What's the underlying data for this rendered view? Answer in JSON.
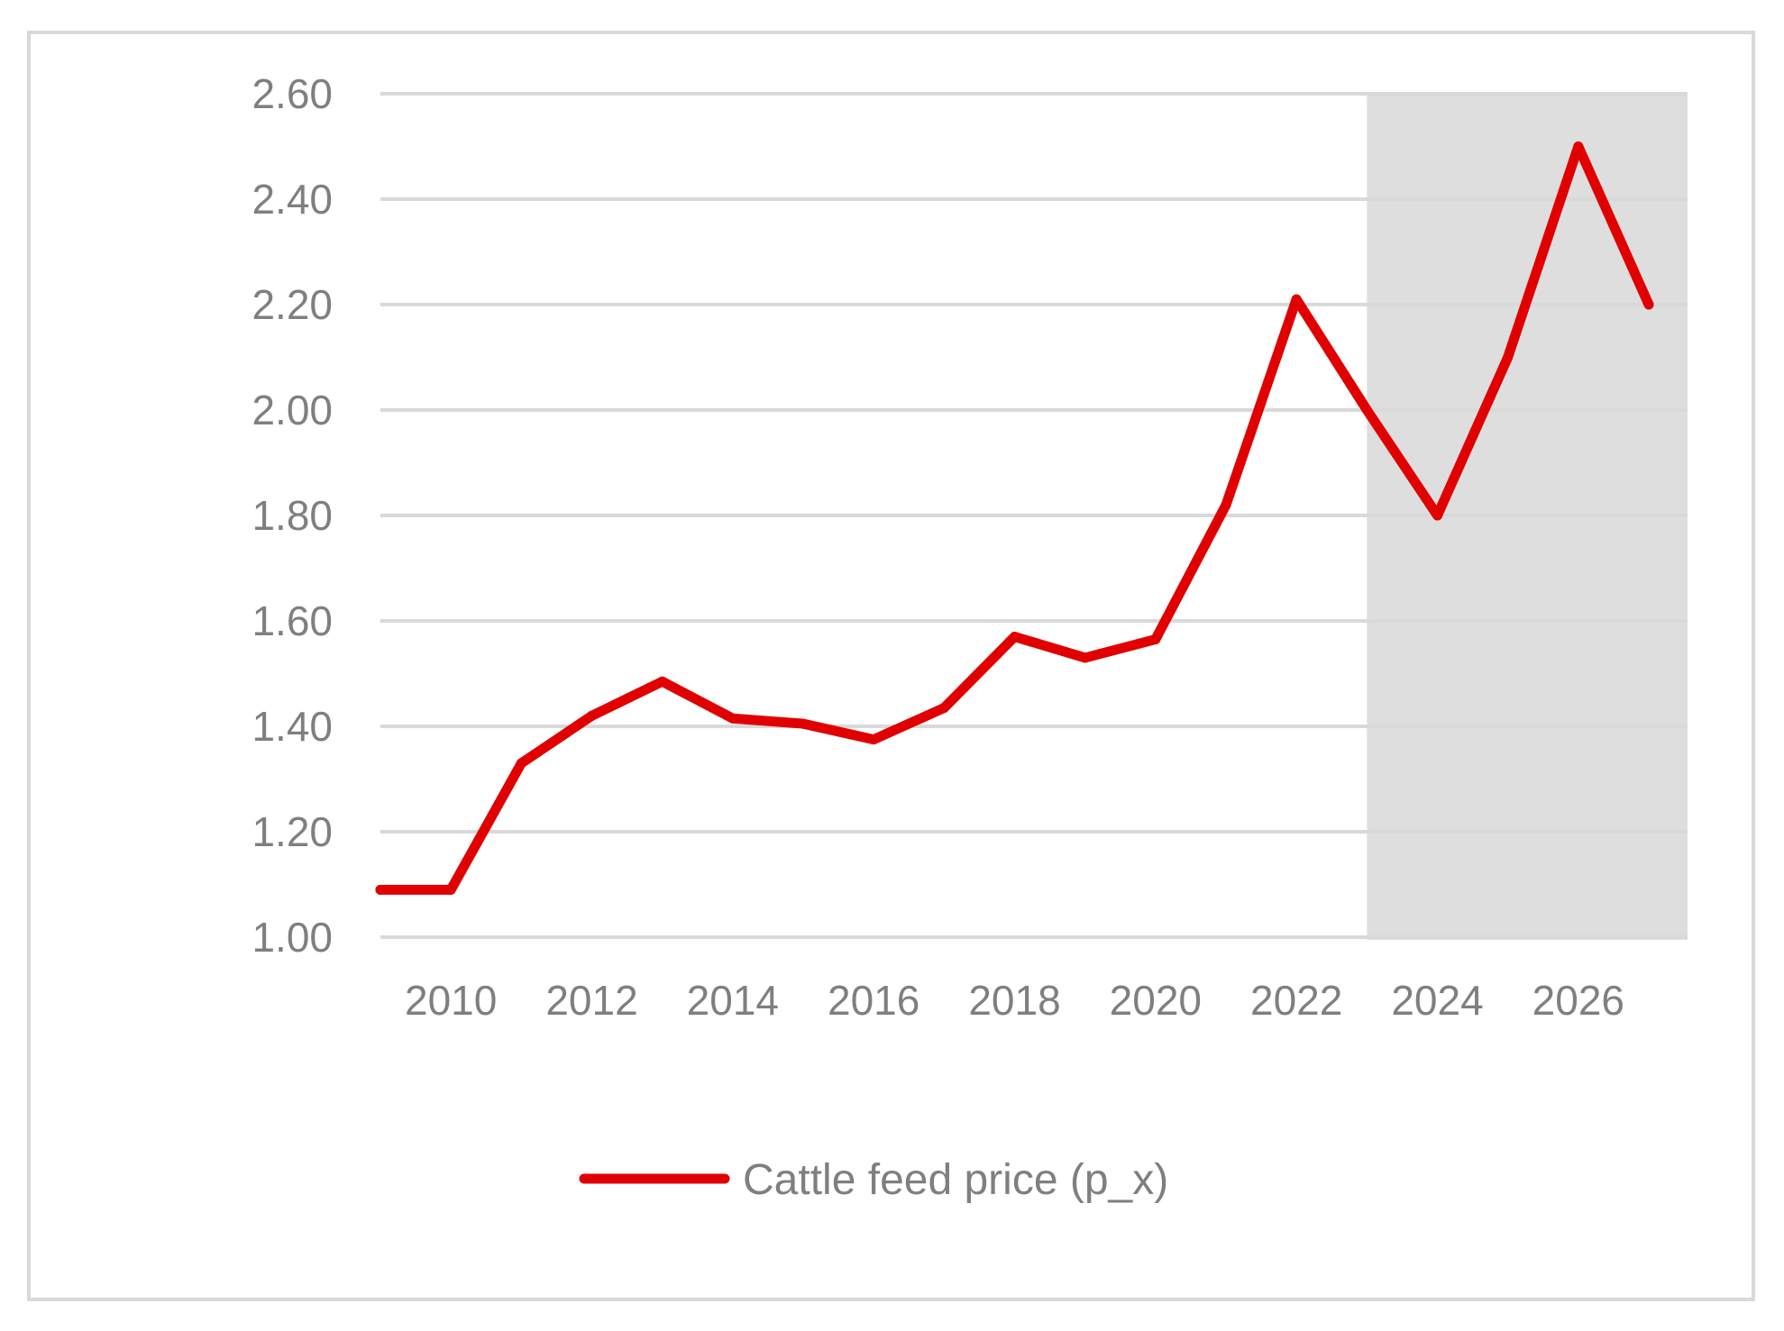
{
  "chart_data": {
    "type": "line",
    "title": "",
    "xlabel": "",
    "ylabel": "",
    "x": [
      2009,
      2010,
      2011,
      2012,
      2013,
      2014,
      2015,
      2016,
      2017,
      2018,
      2019,
      2020,
      2021,
      2022,
      2023,
      2024,
      2025,
      2026,
      2027
    ],
    "series": [
      {
        "name": "Cattle feed price (p_x)",
        "color": "#e00000",
        "values": [
          1.09,
          1.09,
          1.33,
          1.42,
          1.485,
          1.415,
          1.405,
          1.375,
          1.435,
          1.57,
          1.53,
          1.565,
          1.82,
          2.21,
          2.0,
          1.8,
          2.1,
          2.5,
          2.2
        ]
      }
    ],
    "ylim": [
      1.0,
      2.6
    ],
    "xlim": [
      2009,
      2027
    ],
    "y_ticks": [
      "1.00",
      "1.20",
      "1.40",
      "1.60",
      "1.80",
      "2.00",
      "2.20",
      "2.40",
      "2.60"
    ],
    "y_tick_values": [
      1.0,
      1.2,
      1.4,
      1.6,
      1.8,
      2.0,
      2.2,
      2.4,
      2.6
    ],
    "x_ticks": [
      "2010",
      "2012",
      "2014",
      "2016",
      "2018",
      "2020",
      "2022",
      "2024",
      "2026"
    ],
    "x_tick_values": [
      2010,
      2012,
      2014,
      2016,
      2018,
      2020,
      2022,
      2024,
      2026
    ],
    "forecast_shade": {
      "from": 2023,
      "to": 2027.5,
      "color": "#dedede"
    },
    "grid": true,
    "gridline_color": "#d9d9d9",
    "legend": {
      "position": "bottom",
      "entries": [
        "Cattle feed price (p_x)"
      ]
    }
  }
}
